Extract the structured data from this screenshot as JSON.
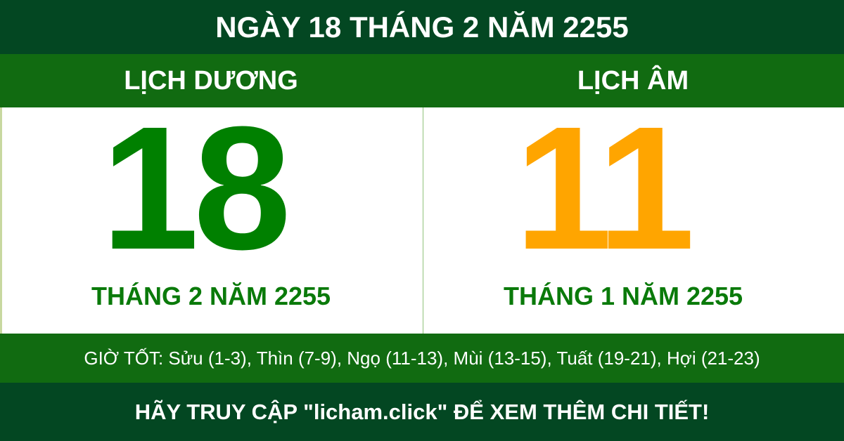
{
  "title": "NGÀY 18 THÁNG 2 NĂM 2255",
  "solar": {
    "heading": "LỊCH DƯƠNG",
    "day": "18",
    "month_year": "THÁNG 2 NĂM 2255"
  },
  "lunar": {
    "heading": "LỊCH ÂM",
    "day": "11",
    "month_year": "THÁNG 1 NĂM 2255"
  },
  "good_hours": "GIỜ TỐT: Sửu (1-3), Thìn (7-9), Ngọ (11-13), Mùi (13-15), Tuất (19-21), Hợi (21-23)",
  "footer": "HÃY TRUY CẬP \"licham.click\" ĐỂ XEM THÊM CHI TIẾT!",
  "colors": {
    "dark_green": "#034722",
    "band_green": "#116b11",
    "solar_number": "#008000",
    "lunar_number": "#ffa500"
  }
}
